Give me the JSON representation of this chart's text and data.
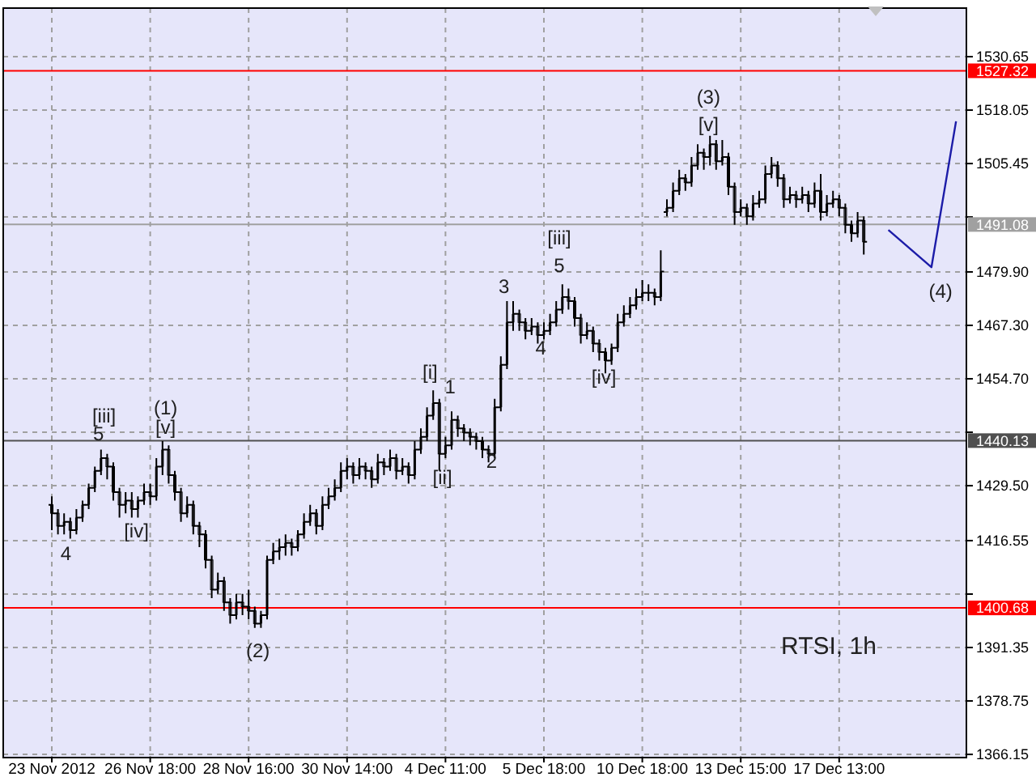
{
  "chart_data": {
    "type": "candlestick",
    "color": "#000000",
    "categories": [
      "23 Nov 2012",
      null,
      null,
      null,
      null,
      null,
      null,
      null,
      null,
      null,
      null,
      null,
      null,
      null,
      null,
      null,
      "26 Nov 18:00",
      null,
      null,
      null,
      null,
      null,
      null,
      null,
      null,
      null,
      null,
      null,
      null,
      null,
      null,
      null,
      "28 Nov 16:00",
      null,
      null,
      null,
      null,
      null,
      null,
      null,
      null,
      null,
      null,
      null,
      null,
      null,
      null,
      null,
      "30 Nov 14:00",
      null,
      null,
      null,
      null,
      null,
      null,
      null,
      null,
      null,
      null,
      null,
      null,
      null,
      null,
      null,
      "4 Dec 11:00",
      null,
      null,
      null,
      null,
      null,
      null,
      null,
      null,
      null,
      null,
      null,
      null,
      null,
      null,
      null,
      "5 Dec 18:00",
      null,
      null,
      null,
      null,
      null,
      null,
      null,
      null,
      null,
      null,
      null,
      null,
      null,
      null,
      null,
      "10 Dec 18:00",
      null,
      null,
      null,
      null,
      null,
      null,
      null,
      null,
      null,
      null,
      null,
      null,
      null,
      null,
      null,
      "13 Dec 15:00",
      null,
      null,
      null,
      null,
      null,
      null,
      null,
      null,
      null,
      null,
      null,
      null,
      null,
      null,
      null,
      "17 Dec 13:00",
      null,
      null,
      null,
      null,
      null,
      null,
      null,
      null,
      null,
      null,
      null,
      null,
      null,
      null,
      null,
      null,
      null,
      null,
      null,
      null
    ],
    "ohlc": [
      [
        1425,
        1427,
        1419,
        1423
      ],
      [
        1423,
        1424,
        1418,
        1420
      ],
      [
        1420,
        1423,
        1418,
        1421
      ],
      [
        1421,
        1422,
        1417,
        1419
      ],
      [
        1419,
        1424,
        1418,
        1422
      ],
      [
        1422,
        1426,
        1421,
        1425
      ],
      [
        1425,
        1430,
        1424,
        1429
      ],
      [
        1429,
        1434,
        1428,
        1433
      ],
      [
        1433,
        1438,
        1432,
        1436
      ],
      [
        1436,
        1437,
        1431,
        1434
      ],
      [
        1434,
        1435,
        1426,
        1428
      ],
      [
        1428,
        1429,
        1422,
        1425
      ],
      [
        1425,
        1428,
        1423,
        1426
      ],
      [
        1426,
        1428,
        1422,
        1424
      ],
      [
        1424,
        1427,
        1422,
        1426
      ],
      [
        1426,
        1430,
        1425,
        1428
      ],
      [
        1428,
        1430,
        1425,
        1427
      ],
      [
        1427,
        1436,
        1426,
        1434
      ],
      [
        1434,
        1440,
        1432,
        1438
      ],
      [
        1438,
        1439,
        1430,
        1432
      ],
      [
        1432,
        1433,
        1426,
        1428
      ],
      [
        1428,
        1429,
        1421,
        1423
      ],
      [
        1423,
        1427,
        1422,
        1425
      ],
      [
        1425,
        1426,
        1418,
        1420
      ],
      [
        1420,
        1421,
        1415,
        1418
      ],
      [
        1418,
        1419,
        1410,
        1412
      ],
      [
        1412,
        1413,
        1403,
        1405
      ],
      [
        1405,
        1409,
        1404,
        1407
      ],
      [
        1407,
        1408,
        1400,
        1402
      ],
      [
        1402,
        1403,
        1397,
        1399
      ],
      [
        1399,
        1404,
        1398,
        1402
      ],
      [
        1402,
        1404,
        1399,
        1401
      ],
      [
        1401,
        1405,
        1398,
        1400
      ],
      [
        1400,
        1401,
        1396,
        1397
      ],
      [
        1397,
        1400,
        1396,
        1399
      ],
      [
        1399,
        1413,
        1398,
        1412
      ],
      [
        1412,
        1416,
        1411,
        1414
      ],
      [
        1414,
        1417,
        1412,
        1415
      ],
      [
        1415,
        1418,
        1413,
        1416
      ],
      [
        1416,
        1417,
        1413,
        1415
      ],
      [
        1415,
        1419,
        1414,
        1418
      ],
      [
        1418,
        1423,
        1417,
        1421
      ],
      [
        1421,
        1425,
        1420,
        1423
      ],
      [
        1423,
        1424,
        1418,
        1420
      ],
      [
        1420,
        1427,
        1419,
        1425
      ],
      [
        1425,
        1429,
        1424,
        1427
      ],
      [
        1427,
        1431,
        1426,
        1429
      ],
      [
        1429,
        1435,
        1428,
        1433
      ],
      [
        1433,
        1436,
        1431,
        1434
      ],
      [
        1434,
        1435,
        1430,
        1432
      ],
      [
        1432,
        1436,
        1431,
        1434
      ],
      [
        1434,
        1435,
        1431,
        1433
      ],
      [
        1433,
        1434,
        1429,
        1431
      ],
      [
        1431,
        1437,
        1430,
        1435
      ],
      [
        1435,
        1436,
        1432,
        1434
      ],
      [
        1434,
        1438,
        1433,
        1436
      ],
      [
        1436,
        1437,
        1431,
        1433
      ],
      [
        1433,
        1436,
        1432,
        1434
      ],
      [
        1434,
        1435,
        1430,
        1432
      ],
      [
        1432,
        1440,
        1431,
        1438
      ],
      [
        1438,
        1443,
        1437,
        1441
      ],
      [
        1441,
        1448,
        1440,
        1446
      ],
      [
        1446,
        1452,
        1445,
        1449
      ],
      [
        1449,
        1450,
        1433,
        1437
      ],
      [
        1437,
        1441,
        1436,
        1439
      ],
      [
        1439,
        1447,
        1438,
        1445
      ],
      [
        1445,
        1446,
        1441,
        1443
      ],
      [
        1443,
        1444,
        1440,
        1442
      ],
      [
        1442,
        1443,
        1439,
        1441
      ],
      [
        1441,
        1442,
        1438,
        1440
      ],
      [
        1440,
        1441,
        1436,
        1438
      ],
      [
        1438,
        1439,
        1435,
        1437
      ],
      [
        1437,
        1450,
        1436,
        1448
      ],
      [
        1448,
        1460,
        1447,
        1458
      ],
      [
        1458,
        1473,
        1457,
        1468
      ],
      [
        1468,
        1473,
        1466,
        1470
      ],
      [
        1470,
        1471,
        1466,
        1468
      ],
      [
        1468,
        1469,
        1464,
        1466
      ],
      [
        1466,
        1469,
        1465,
        1467
      ],
      [
        1467,
        1468,
        1463,
        1465
      ],
      [
        1465,
        1468,
        1464,
        1466
      ],
      [
        1466,
        1470,
        1465,
        1468
      ],
      [
        1468,
        1473,
        1467,
        1471
      ],
      [
        1471,
        1477,
        1470,
        1474
      ],
      [
        1474,
        1476,
        1471,
        1473
      ],
      [
        1473,
        1474,
        1467,
        1469
      ],
      [
        1469,
        1470,
        1463,
        1465
      ],
      [
        1465,
        1468,
        1464,
        1466
      ],
      [
        1466,
        1467,
        1461,
        1463
      ],
      [
        1463,
        1464,
        1459,
        1461
      ],
      [
        1461,
        1462,
        1456,
        1459
      ],
      [
        1459,
        1463,
        1458,
        1462
      ],
      [
        1462,
        1470,
        1461,
        1468
      ],
      [
        1468,
        1472,
        1467,
        1470
      ],
      [
        1470,
        1474,
        1469,
        1472
      ],
      [
        1472,
        1476,
        1471,
        1474
      ],
      [
        1474,
        1478,
        1473,
        1475
      ],
      [
        1475,
        1477,
        1473,
        1475
      ],
      [
        1475,
        1476,
        1472,
        1474
      ],
      [
        1474,
        1485,
        1473,
        1480
      ],
      [
        1494,
        1497,
        1493,
        1495
      ],
      [
        1495,
        1501,
        1494,
        1499
      ],
      [
        1499,
        1504,
        1498,
        1502
      ],
      [
        1502,
        1503,
        1499,
        1501
      ],
      [
        1501,
        1507,
        1500,
        1505
      ],
      [
        1505,
        1510,
        1504,
        1508
      ],
      [
        1508,
        1509,
        1504,
        1507
      ],
      [
        1507,
        1512,
        1505,
        1510
      ],
      [
        1510,
        1511,
        1504,
        1506
      ],
      [
        1506,
        1511,
        1505,
        1507
      ],
      [
        1507,
        1508,
        1498,
        1500
      ],
      [
        1500,
        1501,
        1491,
        1494
      ],
      [
        1494,
        1497,
        1493,
        1495
      ],
      [
        1495,
        1496,
        1491,
        1493
      ],
      [
        1493,
        1498,
        1492,
        1496
      ],
      [
        1496,
        1499,
        1495,
        1497
      ],
      [
        1497,
        1505,
        1496,
        1503
      ],
      [
        1503,
        1507,
        1502,
        1505
      ],
      [
        1505,
        1506,
        1500,
        1502
      ],
      [
        1502,
        1503,
        1495,
        1497
      ],
      [
        1497,
        1500,
        1496,
        1498
      ],
      [
        1498,
        1499,
        1495,
        1497
      ],
      [
        1497,
        1500,
        1496,
        1498
      ],
      [
        1498,
        1499,
        1494,
        1496
      ],
      [
        1496,
        1501,
        1495,
        1499
      ],
      [
        1499,
        1503,
        1492,
        1494
      ],
      [
        1494,
        1498,
        1493,
        1496
      ],
      [
        1496,
        1499,
        1495,
        1497
      ],
      [
        1497,
        1498,
        1493,
        1495
      ],
      [
        1495,
        1496,
        1489,
        1491
      ],
      [
        1491,
        1492,
        1487,
        1489
      ],
      [
        1489,
        1494,
        1488,
        1492
      ],
      [
        1492,
        1493,
        1484,
        1487
      ],
      null,
      null,
      null,
      null,
      null,
      null,
      null,
      null,
      null,
      null,
      null,
      null,
      null,
      null,
      null,
      null
    ],
    "series": [
      {
        "type": "line",
        "color": "#1c1ca8",
        "values": [
          null,
          null,
          null,
          null,
          null,
          null,
          null,
          null,
          null,
          null,
          null,
          null,
          null,
          null,
          null,
          null,
          null,
          null,
          null,
          null,
          null,
          null,
          null,
          null,
          null,
          null,
          null,
          null,
          null,
          null,
          null,
          null,
          null,
          null,
          null,
          null,
          null,
          null,
          null,
          null,
          null,
          null,
          null,
          null,
          null,
          null,
          null,
          null,
          null,
          null,
          null,
          null,
          null,
          null,
          null,
          null,
          null,
          null,
          null,
          null,
          null,
          null,
          null,
          null,
          null,
          null,
          null,
          null,
          null,
          null,
          null,
          null,
          null,
          null,
          null,
          null,
          null,
          null,
          null,
          null,
          null,
          null,
          null,
          null,
          null,
          null,
          null,
          null,
          null,
          null,
          null,
          null,
          null,
          null,
          null,
          null,
          null,
          null,
          null,
          null,
          null,
          null,
          null,
          null,
          null,
          null,
          null,
          null,
          null,
          null,
          null,
          null,
          null,
          null,
          null,
          null,
          null,
          null,
          null,
          null,
          null,
          null,
          null,
          null,
          null,
          null,
          null,
          null,
          null,
          null,
          null,
          null,
          null,
          null,
          null,
          null,
          1489.8,
          null,
          null,
          null,
          null,
          null,
          null,
          1481,
          null,
          null,
          null,
          1515.4,
          null
        ]
      }
    ],
    "ylim": [
      1365.4,
      1542.1
    ],
    "yticks": [
      {
        "value": 1530.65,
        "label": "1530.65"
      },
      {
        "value": 1518.05,
        "label": "1518.05"
      },
      {
        "value": 1505.45,
        "label": "1505.45"
      },
      {
        "value": 1492.85,
        "label": null
      },
      {
        "value": 1479.9,
        "label": "1479.90"
      },
      {
        "value": 1467.3,
        "label": "1467.30"
      },
      {
        "value": 1454.7,
        "label": "1454.70"
      },
      {
        "value": 1442.1,
        "label": null
      },
      {
        "value": 1429.5,
        "label": "1429.50"
      },
      {
        "value": 1416.55,
        "label": "1416.55"
      },
      {
        "value": 1403.95,
        "label": null
      },
      {
        "value": 1391.35,
        "label": "1391.35"
      },
      {
        "value": 1378.75,
        "label": "1378.75"
      },
      {
        "value": 1366.15,
        "label": "1366.15"
      }
    ],
    "grid": true,
    "ref_lines": [
      {
        "axis": "y",
        "value": 1527.32,
        "label": "1527.32",
        "color": "#ff0000"
      },
      {
        "axis": "y",
        "value": 1491.08,
        "label": "1491.08",
        "color": "#a0a0a0"
      },
      {
        "axis": "y",
        "value": 1440.13,
        "label": "1440.13",
        "color": "#505050"
      },
      {
        "axis": "y",
        "value": 1400.68,
        "label": "1400.68",
        "color": "#ff0000"
      }
    ],
    "annotations": [
      "4",
      "[iii]",
      "5",
      "(1)",
      "[v]",
      "[iv]",
      "(2)",
      "[i]",
      "1",
      "[ii]",
      "2",
      "3",
      "4",
      "5",
      "[iii]",
      "[iv]",
      "(3)",
      "[v]",
      "(4)",
      "RTSI, 1h"
    ]
  }
}
